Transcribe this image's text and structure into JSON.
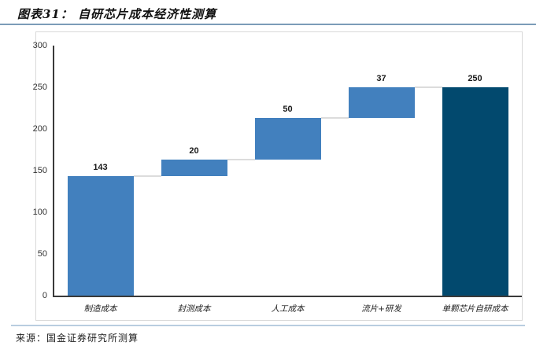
{
  "header": {
    "title": "图表31： 自研芯片成本经济性测算"
  },
  "footer": {
    "source": "来源：国金证券研究所测算"
  },
  "chart_data": {
    "type": "bar",
    "subtype": "waterfall",
    "title": "自研芯片成本经济性测算",
    "categories": [
      "制造成本",
      "封测成本",
      "人工成本",
      "流片+研发",
      "单颗芯片自研成本"
    ],
    "series": [
      {
        "name": "成本",
        "values": [
          143,
          20,
          50,
          37,
          250
        ]
      }
    ],
    "bases": [
      0,
      143,
      163,
      213,
      0
    ],
    "value_labels": [
      "143",
      "20",
      "50",
      "37",
      "250"
    ],
    "total_index": 4,
    "ylim": [
      0,
      300
    ],
    "yticks": [
      0,
      50,
      100,
      150,
      200,
      250,
      300
    ],
    "xlabel": "",
    "ylabel": "",
    "grid": false,
    "legend_position": "none",
    "bar_color": "#4280BE",
    "total_bar_color": "#02496E",
    "connector_color": "#DCDCDC",
    "axis_color": "#3A3A3A"
  }
}
